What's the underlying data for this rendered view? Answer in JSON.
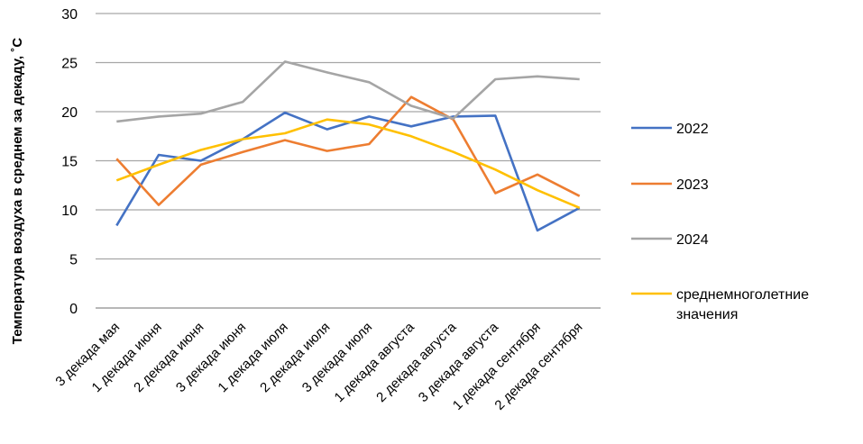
{
  "chart_data": {
    "type": "line",
    "ylabel": "Температура воздуха в среднем за декаду, ˚С",
    "ylim": [
      0,
      30
    ],
    "yticks": [
      0,
      5,
      10,
      15,
      20,
      25,
      30
    ],
    "grid": true,
    "legend_position": "right",
    "categories": [
      "3 декада мая",
      "1 декада июня",
      "2 декада июня",
      "3 декада июня",
      "1 декада июля",
      "2 декада июля",
      "3 декада июля",
      "1 декада августа",
      "2 декада августа",
      "3 декада августа",
      "1 декада сентября",
      "2 декада сентября"
    ],
    "series": [
      {
        "name": "2022",
        "color": "#4472C4",
        "values": [
          8.4,
          15.6,
          15.0,
          17.2,
          19.9,
          18.2,
          19.5,
          18.5,
          19.5,
          19.6,
          7.9,
          10.2
        ]
      },
      {
        "name": "2023",
        "color": "#ED7D31",
        "values": [
          15.2,
          10.5,
          14.6,
          15.9,
          17.1,
          16.0,
          16.7,
          21.5,
          19.2,
          11.7,
          13.6,
          11.4
        ]
      },
      {
        "name": "2024",
        "color": "#A5A5A5",
        "values": [
          19.0,
          19.5,
          19.8,
          21.0,
          25.1,
          24.0,
          23.0,
          20.6,
          19.3,
          23.3,
          23.6,
          23.3
        ]
      },
      {
        "name": "среднемноголетние значения",
        "color": "#FFC000",
        "values": [
          13.0,
          14.6,
          16.1,
          17.2,
          17.8,
          19.2,
          18.7,
          17.5,
          15.9,
          14.1,
          12.0,
          10.2
        ]
      }
    ],
    "legend_lines": [
      [
        "2022"
      ],
      [
        "2023"
      ],
      [
        "2024"
      ],
      [
        "среднемноголетние",
        "значения"
      ]
    ]
  }
}
